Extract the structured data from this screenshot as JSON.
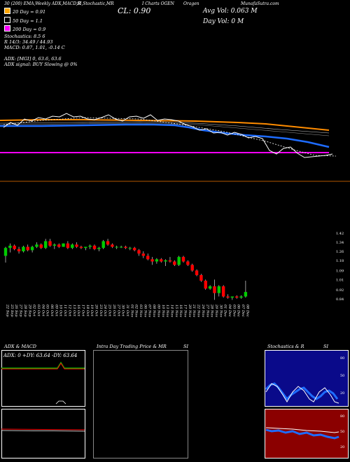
{
  "header": {
    "line1": [
      "30 (200) EMA,Weekly ADX,MACD,R",
      "SI,Stochastic,MR",
      "I Charts OGEN",
      "Oragen",
      "MunafaSutra.com"
    ],
    "cl": "CL: 0.90",
    "avg_vol": "Avg Vol: 0.063 M",
    "day_vol": "Day Vol: 0   M",
    "stochastics": "Stochastics: 8.5         6",
    "rsi": "R  14/3: 34.49 / 44.93",
    "macd": "MACD: 0.87,  1.01,  -0.14  C",
    "adx": "ADX:                        [MGI] 0, 63.6,  63.6",
    "adx_signal": "ADX  signal:                         BUY Slowing @ 0%"
  },
  "legend": [
    {
      "label": "20  Day = 0.91",
      "color": "#ffa500"
    },
    {
      "label": "50  Day = 1.1",
      "color": "#ffffff"
    },
    {
      "label": "200  Day = 0.9",
      "color": "#ff00ff"
    }
  ],
  "colors": {
    "up": "#00cc00",
    "down": "#ff0000",
    "ema20": "#ff8c00",
    "ema50": "#1e6cff",
    "ema200": "#ff00ff",
    "price": "#ffffff",
    "orange_line": "#b35900",
    "adx_bg": "#000000",
    "rsi_bg": "#0a0a8a",
    "mrsi_bg": "#8b0000"
  },
  "panels": {
    "adx_title": "ADX  & MACD",
    "adx_values": "ADX: 0  +DY: 63.64  -DY: 63.64",
    "intraday_title": "Intra  Day Trading Price  & MR",
    "intraday_si": "SI",
    "stoch_title": "Stochastics & R",
    "stoch_si": "SI"
  },
  "rsi_ticks": [
    "80",
    "50",
    "20"
  ],
  "mrsi_ticks": [
    "80",
    "50",
    "20"
  ],
  "chart_data": {
    "type": "candlestick",
    "x": [
      "22 Sep",
      "25 Sep",
      "26 Sep",
      "27 Sep",
      "28 Sep",
      "29 Sep",
      "02 Oct",
      "03 Oct",
      "04 Oct",
      "05 Oct",
      "06 Oct",
      "09 Oct",
      "10 Oct",
      "11 Oct",
      "12 Oct",
      "13 Oct",
      "16 Oct",
      "17 Oct",
      "18 Oct",
      "19 Oct",
      "20 Oct",
      "23 Oct",
      "24 Oct",
      "25 Oct",
      "26 Oct",
      "27 Oct",
      "30 Oct",
      "31 Oct",
      "01 Nov",
      "02 Nov",
      "03 Nov",
      "06 Nov",
      "07 Nov",
      "08 Nov",
      "09 Nov",
      "10 Nov",
      "13 Nov",
      "14 Nov",
      "15 Nov",
      "16 Nov",
      "17 Nov",
      "20 Nov",
      "21 Nov",
      "22 Nov",
      "24 Nov",
      "27 Nov",
      "28 Nov",
      "29 Nov",
      "30 Nov",
      "01 Dec",
      "04 Dec",
      "05 Dec",
      "06 Dec",
      "07 Dec",
      "08 Dec"
    ],
    "y_ticks": [
      "1.42",
      "1.34",
      "1.26",
      "1.18",
      "1.09",
      "1.01",
      "0.92",
      "0.84"
    ],
    "ylim": [
      0.82,
      1.44
    ],
    "candles": [
      {
        "o": 1.22,
        "h": 1.3,
        "l": 1.16,
        "c": 1.29
      },
      {
        "o": 1.29,
        "h": 1.33,
        "l": 1.25,
        "c": 1.31
      },
      {
        "o": 1.31,
        "h": 1.32,
        "l": 1.27,
        "c": 1.28
      },
      {
        "o": 1.28,
        "h": 1.3,
        "l": 1.24,
        "c": 1.26
      },
      {
        "o": 1.26,
        "h": 1.31,
        "l": 1.25,
        "c": 1.3
      },
      {
        "o": 1.3,
        "h": 1.32,
        "l": 1.26,
        "c": 1.27
      },
      {
        "o": 1.27,
        "h": 1.31,
        "l": 1.25,
        "c": 1.3
      },
      {
        "o": 1.3,
        "h": 1.34,
        "l": 1.29,
        "c": 1.32
      },
      {
        "o": 1.32,
        "h": 1.33,
        "l": 1.28,
        "c": 1.29
      },
      {
        "o": 1.29,
        "h": 1.37,
        "l": 1.28,
        "c": 1.35
      },
      {
        "o": 1.35,
        "h": 1.37,
        "l": 1.3,
        "c": 1.31
      },
      {
        "o": 1.31,
        "h": 1.33,
        "l": 1.28,
        "c": 1.32
      },
      {
        "o": 1.32,
        "h": 1.33,
        "l": 1.29,
        "c": 1.3
      },
      {
        "o": 1.3,
        "h": 1.33,
        "l": 1.3,
        "c": 1.33
      },
      {
        "o": 1.33,
        "h": 1.35,
        "l": 1.28,
        "c": 1.29
      },
      {
        "o": 1.29,
        "h": 1.33,
        "l": 1.28,
        "c": 1.32
      },
      {
        "o": 1.32,
        "h": 1.34,
        "l": 1.29,
        "c": 1.3
      },
      {
        "o": 1.3,
        "h": 1.31,
        "l": 1.28,
        "c": 1.29
      },
      {
        "o": 1.29,
        "h": 1.3,
        "l": 1.27,
        "c": 1.3
      },
      {
        "o": 1.3,
        "h": 1.32,
        "l": 1.28,
        "c": 1.31
      },
      {
        "o": 1.31,
        "h": 1.32,
        "l": 1.27,
        "c": 1.28
      },
      {
        "o": 1.28,
        "h": 1.3,
        "l": 1.26,
        "c": 1.29
      },
      {
        "o": 1.29,
        "h": 1.36,
        "l": 1.28,
        "c": 1.35
      },
      {
        "o": 1.35,
        "h": 1.37,
        "l": 1.31,
        "c": 1.32
      },
      {
        "o": 1.32,
        "h": 1.33,
        "l": 1.29,
        "c": 1.3
      },
      {
        "o": 1.3,
        "h": 1.31,
        "l": 1.28,
        "c": 1.3
      },
      {
        "o": 1.3,
        "h": 1.31,
        "l": 1.29,
        "c": 1.3
      },
      {
        "o": 1.3,
        "h": 1.31,
        "l": 1.28,
        "c": 1.29
      },
      {
        "o": 1.29,
        "h": 1.3,
        "l": 1.27,
        "c": 1.29
      },
      {
        "o": 1.29,
        "h": 1.3,
        "l": 1.26,
        "c": 1.27
      },
      {
        "o": 1.27,
        "h": 1.28,
        "l": 1.22,
        "c": 1.24
      },
      {
        "o": 1.24,
        "h": 1.26,
        "l": 1.2,
        "c": 1.22
      },
      {
        "o": 1.22,
        "h": 1.24,
        "l": 1.18,
        "c": 1.19
      },
      {
        "o": 1.19,
        "h": 1.21,
        "l": 1.14,
        "c": 1.17
      },
      {
        "o": 1.17,
        "h": 1.2,
        "l": 1.15,
        "c": 1.19
      },
      {
        "o": 1.19,
        "h": 1.2,
        "l": 1.16,
        "c": 1.17
      },
      {
        "o": 1.17,
        "h": 1.19,
        "l": 1.13,
        "c": 1.18
      },
      {
        "o": 1.18,
        "h": 1.21,
        "l": 1.16,
        "c": 1.17
      },
      {
        "o": 1.17,
        "h": 1.18,
        "l": 1.13,
        "c": 1.14
      },
      {
        "o": 1.14,
        "h": 1.22,
        "l": 1.13,
        "c": 1.21
      },
      {
        "o": 1.21,
        "h": 1.22,
        "l": 1.16,
        "c": 1.17
      },
      {
        "o": 1.17,
        "h": 1.18,
        "l": 1.13,
        "c": 1.14
      },
      {
        "o": 1.14,
        "h": 1.15,
        "l": 1.08,
        "c": 1.09
      },
      {
        "o": 1.09,
        "h": 1.1,
        "l": 1.04,
        "c": 1.05
      },
      {
        "o": 1.05,
        "h": 1.06,
        "l": 0.99,
        "c": 1.0
      },
      {
        "o": 1.0,
        "h": 1.01,
        "l": 0.92,
        "c": 0.93
      },
      {
        "o": 0.93,
        "h": 0.96,
        "l": 0.92,
        "c": 0.95
      },
      {
        "o": 0.95,
        "h": 1.01,
        "l": 0.83,
        "c": 0.89
      },
      {
        "o": 0.89,
        "h": 0.96,
        "l": 0.86,
        "c": 0.95
      },
      {
        "o": 0.95,
        "h": 0.96,
        "l": 0.85,
        "c": 0.86
      },
      {
        "o": 0.86,
        "h": 0.88,
        "l": 0.84,
        "c": 0.85
      },
      {
        "o": 0.85,
        "h": 0.86,
        "l": 0.83,
        "c": 0.86
      },
      {
        "o": 0.86,
        "h": 0.87,
        "l": 0.84,
        "c": 0.85
      },
      {
        "o": 0.85,
        "h": 0.87,
        "l": 0.84,
        "c": 0.86
      },
      {
        "o": 0.86,
        "h": 1.0,
        "l": 0.85,
        "c": 0.9
      }
    ]
  }
}
